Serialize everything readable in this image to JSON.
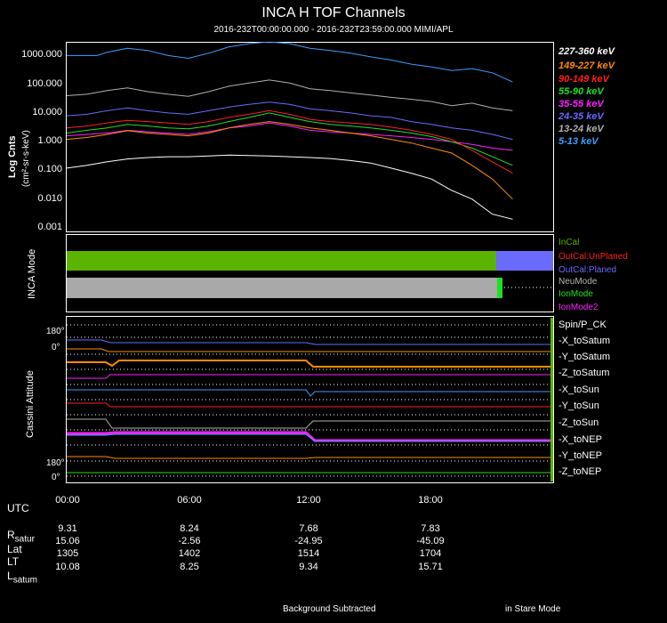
{
  "title": "INCA H TOF Channels",
  "subtitle": "2016-232T00:00:00.000 - 2016-232T23:59:00.000 MIMI/APL",
  "panel1": {
    "ylabel": "Log Cnts",
    "yunits": "(cm²-sr-s-keV)",
    "yticks": [
      "1000.000",
      "100.000",
      "10.000",
      "1.000",
      "0.100",
      "0.010",
      "0.001"
    ]
  },
  "legend": [
    {
      "label": "227-360 keV",
      "color": "#ffffff"
    },
    {
      "label": "149-227 keV",
      "color": "#ff8c00"
    },
    {
      "label": "90-149 keV",
      "color": "#ff2020"
    },
    {
      "label": "55-90 keV",
      "color": "#20e020"
    },
    {
      "label": "35-55 keV",
      "color": "#ff20ff"
    },
    {
      "label": "24-35 keV",
      "color": "#6a6aff"
    },
    {
      "label": "13-24 keV",
      "color": "#b0b0b0"
    },
    {
      "label": "5-13 keV",
      "color": "#3aa0ff"
    }
  ],
  "panel2": {
    "ylabel": "INCA Mode",
    "modes": [
      {
        "label": "InCal",
        "color": "#5ab400"
      },
      {
        "label": "OutCal:UnPlaned",
        "color": "#ff2020"
      },
      {
        "label": "OutCal:Planed",
        "color": "#6a6aff"
      },
      {
        "label": "NeuMode",
        "color": "#b4b4b4"
      },
      {
        "label": "IonMode",
        "color": "#20e020"
      },
      {
        "label": "IonMode2",
        "color": "#ff20ff"
      }
    ]
  },
  "panel3": {
    "ylabel": "Cassini Attitude",
    "tick_top": "180°",
    "tick_top0": "0°",
    "tick_bottom": "180°",
    "tick_bottom0": "0°",
    "labels": [
      "Spin/P_CK",
      "-X_toSatum",
      "-Y_toSatum",
      "-Z_toSatum",
      "-X_toSun",
      "-Y_toSun",
      "-Z_toSun",
      "-X_toNEP",
      "-Y_toNEP",
      "-Z_toNEP"
    ]
  },
  "xticks": [
    "00:00",
    "06:00",
    "12:00",
    "18:00"
  ],
  "ephemeris": {
    "utc_label": "UTC",
    "rows": [
      {
        "label": "R",
        "sub": "satur",
        "values": [
          "9.31",
          "8.24",
          "7.68",
          "7.83"
        ]
      },
      {
        "label": "Lat",
        "sub": "",
        "values": [
          "15.06",
          "-2.56",
          "-24.95",
          "-45.09"
        ]
      },
      {
        "label": "LT",
        "sub": "",
        "values": [
          "1305",
          "1402",
          "1514",
          "1704"
        ]
      },
      {
        "label": "L",
        "sub": "satum",
        "values": [
          "10.08",
          "8.25",
          "9.34",
          "15.71"
        ]
      }
    ]
  },
  "footer": {
    "left": "Background Subtracted",
    "right": "in Stare Mode"
  },
  "chart_data": {
    "type": "line",
    "title": "INCA H TOF Channels",
    "xlabel": "UTC",
    "ylabel": "Log Cnts (cm²-sr-s-keV)",
    "yscale": "log",
    "ylim": [
      0.001,
      3000
    ],
    "xlim": [
      0,
      24
    ],
    "series": [
      {
        "name": "5-13 keV",
        "color": "#3aa0ff",
        "x": [
          0,
          1.5,
          2,
          3,
          4,
          5,
          6,
          7,
          8,
          9,
          10,
          11,
          12,
          13,
          14,
          15,
          16,
          17,
          18,
          19,
          20,
          21,
          22
        ],
        "values": [
          1000,
          1000,
          1300,
          1800,
          1500,
          1000,
          800,
          1200,
          2000,
          2600,
          3000,
          2600,
          1800,
          1500,
          1200,
          900,
          700,
          500,
          400,
          300,
          350,
          250,
          120
        ]
      },
      {
        "name": "13-24 keV",
        "color": "#b0b0b0",
        "x": [
          0,
          1,
          2,
          3,
          4,
          5,
          6,
          7,
          8,
          9,
          10,
          11,
          12,
          13,
          14,
          15,
          16,
          17,
          18,
          19,
          20,
          21,
          22
        ],
        "values": [
          40,
          45,
          60,
          75,
          55,
          45,
          38,
          55,
          85,
          110,
          140,
          110,
          70,
          60,
          50,
          42,
          35,
          30,
          25,
          18,
          22,
          15,
          12
        ]
      },
      {
        "name": "24-35 keV",
        "color": "#6a6aff",
        "x": [
          0,
          1,
          2,
          3,
          4,
          5,
          6,
          7,
          8,
          9,
          10,
          11,
          12,
          13,
          14,
          15,
          16,
          17,
          18,
          19,
          20,
          21,
          22
        ],
        "values": [
          8,
          9,
          12,
          15,
          12,
          10,
          9,
          12,
          16,
          20,
          24,
          20,
          14,
          12,
          10,
          8,
          7,
          5,
          4,
          3,
          2.5,
          1.8,
          1.2
        ]
      },
      {
        "name": "35-55 keV",
        "color": "#ff20ff",
        "x": [
          0,
          1,
          2,
          3,
          4,
          5,
          6,
          7,
          8,
          9,
          10,
          11,
          12,
          13,
          14,
          15,
          16,
          17,
          18,
          19,
          20,
          21,
          22
        ],
        "values": [
          1.6,
          1.8,
          2,
          2.5,
          2.2,
          2,
          1.8,
          2.2,
          3,
          3.5,
          4.5,
          3.5,
          2.5,
          2.2,
          2,
          1.8,
          1.6,
          1.4,
          1.2,
          1,
          0.8,
          0.6,
          0.5
        ]
      },
      {
        "name": "55-90 keV",
        "color": "#20e020",
        "x": [
          0,
          1,
          2,
          3,
          4,
          5,
          6,
          7,
          8,
          9,
          10,
          11,
          12,
          13,
          14,
          15,
          16,
          17,
          18,
          19,
          20,
          21,
          22
        ],
        "values": [
          2,
          2.5,
          3,
          4,
          3.5,
          3,
          2.8,
          3.5,
          5,
          7,
          10,
          7,
          5,
          4,
          3.5,
          3,
          2.5,
          2,
          1.5,
          1,
          0.6,
          0.3,
          0.15
        ]
      },
      {
        "name": "90-149 keV",
        "color": "#ff2020",
        "x": [
          0,
          1,
          2,
          3,
          4,
          5,
          6,
          7,
          8,
          9,
          10,
          11,
          12,
          13,
          14,
          15,
          16,
          17,
          18,
          19,
          20,
          21,
          22
        ],
        "values": [
          3,
          3.5,
          4.5,
          5.5,
          5,
          4.5,
          4,
          5,
          7,
          9,
          12,
          9,
          6,
          5,
          4.5,
          4,
          3.2,
          2.5,
          1.8,
          1.2,
          0.5,
          0.2,
          0.08
        ]
      },
      {
        "name": "149-227 keV",
        "color": "#ff8c00",
        "x": [
          0,
          1,
          2,
          3,
          4,
          5,
          6,
          7,
          8,
          9,
          10,
          11,
          12,
          13,
          14,
          15,
          16,
          17,
          18,
          19,
          20,
          21,
          22
        ],
        "values": [
          1.2,
          1.4,
          1.8,
          2.4,
          2,
          1.8,
          1.6,
          2,
          3,
          4,
          5,
          4,
          3,
          2.5,
          2,
          1.6,
          1.2,
          0.9,
          0.6,
          0.4,
          0.15,
          0.05,
          0.01
        ]
      },
      {
        "name": "227-360 keV",
        "color": "#ffffff",
        "x": [
          0,
          1,
          2,
          3,
          4,
          5,
          6,
          7,
          8,
          9,
          10,
          11,
          12,
          13,
          14,
          15,
          16,
          17,
          18,
          19,
          20,
          21,
          22
        ],
        "values": [
          0.12,
          0.15,
          0.2,
          0.25,
          0.28,
          0.3,
          0.3,
          0.32,
          0.34,
          0.33,
          0.32,
          0.3,
          0.28,
          0.26,
          0.22,
          0.18,
          0.12,
          0.08,
          0.05,
          0.02,
          0.01,
          0.003,
          0.002
        ]
      }
    ]
  }
}
